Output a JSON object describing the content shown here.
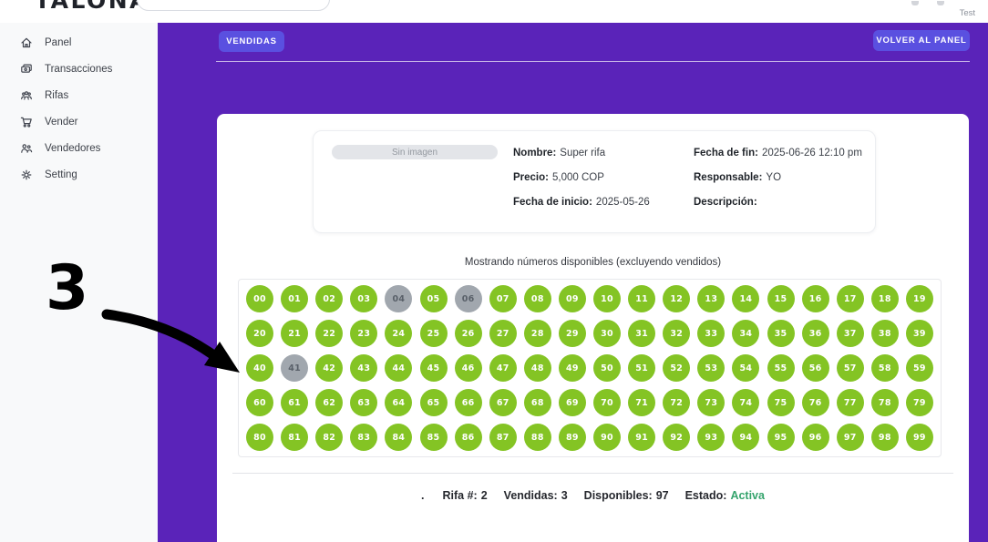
{
  "topbar": {
    "logo": "TALONARIO",
    "user": "Test",
    "search_value": ""
  },
  "sidebar": {
    "items": [
      {
        "label": "Panel",
        "icon": "home-icon"
      },
      {
        "label": "Transacciones",
        "icon": "transactions-icon"
      },
      {
        "label": "Rifas",
        "icon": "raffles-icon"
      },
      {
        "label": "Vender",
        "icon": "cart-icon"
      },
      {
        "label": "Vendedores",
        "icon": "sellers-icon"
      },
      {
        "label": "Setting",
        "icon": "gear-icon"
      }
    ]
  },
  "toolbar": {
    "vendidas_label": "VENDIDAS",
    "volver_label": "VOLVER AL PANEL"
  },
  "raffle_info": {
    "image_placeholder": "Sin imagen",
    "fields_left": [
      {
        "label": "Nombre:",
        "value": "Super rifa"
      },
      {
        "label": "Precio:",
        "value": "5,000 COP"
      },
      {
        "label": "Fecha de inicio:",
        "value": "2025-05-26"
      }
    ],
    "fields_right": [
      {
        "label": "Fecha de fin:",
        "value": "2025-06-26 12:10 pm"
      },
      {
        "label": "Responsable:",
        "value": "YO"
      },
      {
        "label": "Descripción:",
        "value": ""
      }
    ]
  },
  "numbers_grid": {
    "caption": "Mostrando números disponibles (excluyendo vendidos)",
    "numbers": [
      "00",
      "01",
      "02",
      "03",
      "04",
      "05",
      "06",
      "07",
      "08",
      "09",
      "10",
      "11",
      "12",
      "13",
      "14",
      "15",
      "16",
      "17",
      "18",
      "19",
      "20",
      "21",
      "22",
      "23",
      "24",
      "25",
      "26",
      "27",
      "28",
      "29",
      "30",
      "31",
      "32",
      "33",
      "34",
      "35",
      "36",
      "37",
      "38",
      "39",
      "40",
      "41",
      "42",
      "43",
      "44",
      "45",
      "46",
      "47",
      "48",
      "49",
      "50",
      "51",
      "52",
      "53",
      "54",
      "55",
      "56",
      "57",
      "58",
      "59",
      "60",
      "61",
      "62",
      "63",
      "64",
      "65",
      "66",
      "67",
      "68",
      "69",
      "70",
      "71",
      "72",
      "73",
      "74",
      "75",
      "76",
      "77",
      "78",
      "79",
      "80",
      "81",
      "82",
      "83",
      "84",
      "85",
      "86",
      "87",
      "88",
      "89",
      "90",
      "91",
      "92",
      "93",
      "94",
      "95",
      "96",
      "97",
      "98",
      "99"
    ],
    "sold": [
      "04",
      "06",
      "41"
    ]
  },
  "footer": {
    "prefix": ".",
    "segments": [
      {
        "label": "Rifa #:",
        "value": "2"
      },
      {
        "label": "Vendidas:",
        "value": "3"
      },
      {
        "label": "Disponibles:",
        "value": "97"
      },
      {
        "label": "Estado:",
        "value": "Activa",
        "highlight": true
      }
    ]
  },
  "annotation": {
    "step_number": "3"
  },
  "colors": {
    "purple_bg": "#5a23b9",
    "button": "#5a50e0",
    "available_green": "#84c424",
    "sold_gray": "#a1a7ae",
    "sold_gray_text": "#596069",
    "status_active_green": "#35a46d",
    "sidebar_bg": "#f8f9fa"
  }
}
